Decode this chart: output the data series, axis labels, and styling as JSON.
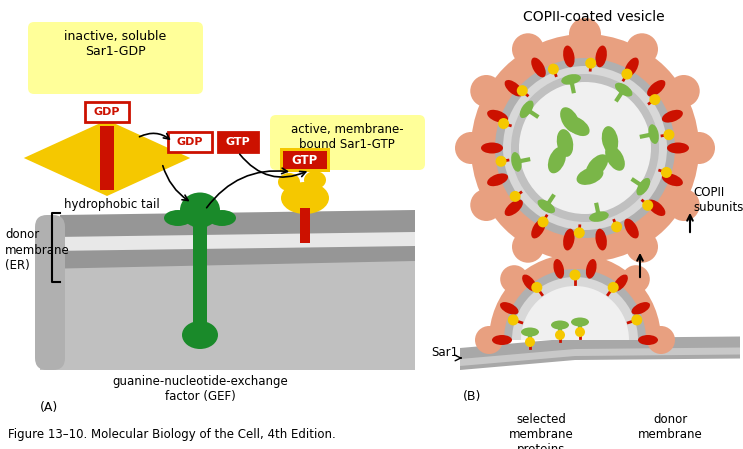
{
  "title": "COPII-coated vesicle",
  "figure_caption": "Figure 13–10. Molecular Biology of the Cell, 4th Edition.",
  "label_A": "(A)",
  "label_B": "(B)",
  "inactive_label": "inactive, soluble\nSar1-GDP",
  "active_label": "active, membrane-\nbound Sar1-GTP",
  "hydrophobic_label": "hydrophobic tail",
  "gef_label": "guanine-nucleotide-exchange\nfactor (GEF)",
  "donor_label": "donor\nmembrane\n(ER)",
  "sar1_label": "Sar1",
  "selected_label": "selected\nmembrane\nproteins",
  "donor2_label": "donor\nmembrane",
  "copii_label": "COPII\nsubunits",
  "bg_color": "#ffffff",
  "yellow_box_color": "#ffff99",
  "yellow_protein_color": "#f5c800",
  "green_gef": "#1a8a2a",
  "green_light": "#7ab648",
  "gray_mem_outer": "#a0a0a0",
  "gray_mem_mid": "#d0d0d0",
  "gray_mem_inner": "#b8b8b8",
  "gray_lumen": "#c8c8c8",
  "pink_coat": "#e8a080",
  "red_copii": "#cc1100",
  "yellow_sar1": "#f5c800",
  "gray_flat_mem": "#a8a8a8"
}
